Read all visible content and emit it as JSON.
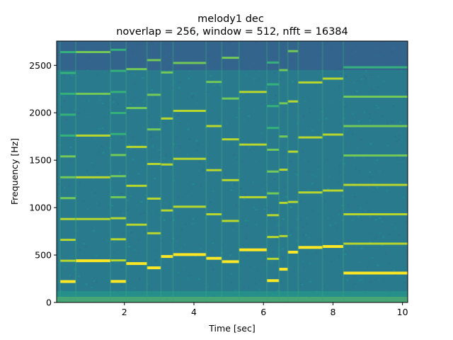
{
  "chart_data": {
    "type": "heatmap",
    "title": "melody1 dec",
    "subtitle": "noverlap = 256, window = 512, nfft = 16384",
    "xlabel": "Time [sec]",
    "ylabel": "Frequency [Hz]",
    "xlim": [
      0.05,
      10.15
    ],
    "ylim": [
      0,
      2756
    ],
    "x_ticks": [
      2,
      4,
      6,
      8,
      10
    ],
    "y_ticks": [
      0,
      500,
      1000,
      1500,
      2000,
      2500
    ],
    "grid": false,
    "legend": "none",
    "colormap": "viridis",
    "colors": {
      "background": "#2a7a8e",
      "low": "#3a4c8a",
      "high": "#fde725",
      "mid": "#21a585"
    },
    "notes_fundamental_hz": [
      {
        "t_start": 0.15,
        "t_end": 0.6,
        "f0": 220
      },
      {
        "t_start": 0.6,
        "t_end": 1.6,
        "f0": 440
      },
      {
        "t_start": 1.6,
        "t_end": 2.05,
        "f0": 222
      },
      {
        "t_start": 2.05,
        "t_end": 2.65,
        "f0": 410
      },
      {
        "t_start": 2.65,
        "t_end": 3.05,
        "f0": 365
      },
      {
        "t_start": 3.05,
        "t_end": 3.4,
        "f0": 485
      },
      {
        "t_start": 3.4,
        "t_end": 4.35,
        "f0": 505
      },
      {
        "t_start": 4.35,
        "t_end": 4.8,
        "f0": 465
      },
      {
        "t_start": 4.8,
        "t_end": 5.3,
        "f0": 430
      },
      {
        "t_start": 5.3,
        "t_end": 6.1,
        "f0": 555
      },
      {
        "t_start": 6.1,
        "t_end": 6.45,
        "f0": 230
      },
      {
        "t_start": 6.45,
        "t_end": 6.7,
        "f0": 350
      },
      {
        "t_start": 6.7,
        "t_end": 7.0,
        "f0": 530
      },
      {
        "t_start": 7.0,
        "t_end": 7.7,
        "f0": 580
      },
      {
        "t_start": 7.7,
        "t_end": 8.3,
        "f0": 590
      },
      {
        "t_start": 8.3,
        "t_end": 10.15,
        "f0": 310
      }
    ]
  }
}
